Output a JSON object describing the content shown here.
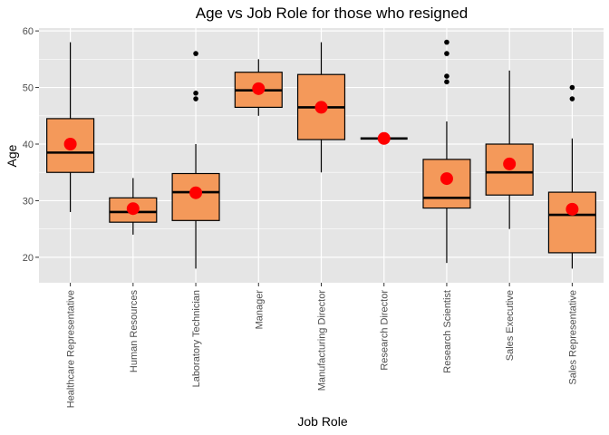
{
  "chart_data": {
    "type": "boxplot",
    "title": "Age vs Job Role for those who resigned",
    "xlabel": "Job Role",
    "ylabel": "Age",
    "ylim": [
      15.5,
      60.5
    ],
    "yticks": [
      20,
      30,
      40,
      50,
      60
    ],
    "grid": true,
    "colors": {
      "panel": "#e5e5e5",
      "grid": "#ffffff",
      "box_fill": "#f4995a",
      "box_stroke": "#000000",
      "mean": "#ff0000",
      "outlier": "#000000"
    },
    "categories": [
      "Healthcare Representative",
      "Human Resources",
      "Laboratory Technician",
      "Manager",
      "Manufacturing Director",
      "Research Director",
      "Research Scientist",
      "Sales Executive",
      "Sales Representative"
    ],
    "boxes": [
      {
        "min": 28,
        "q1": 35,
        "median": 38.5,
        "q3": 44.5,
        "max": 58,
        "mean": 40,
        "outliers": []
      },
      {
        "min": 24,
        "q1": 26.2,
        "median": 28,
        "q3": 30.5,
        "max": 34,
        "mean": 28.6,
        "outliers": []
      },
      {
        "min": 18,
        "q1": 26.5,
        "median": 31.5,
        "q3": 34.8,
        "max": 40,
        "mean": 31.4,
        "outliers": [
          48,
          49,
          56
        ]
      },
      {
        "min": 45,
        "q1": 46.5,
        "median": 49.5,
        "q3": 52.7,
        "max": 55,
        "mean": 49.8,
        "outliers": []
      },
      {
        "min": 35,
        "q1": 40.8,
        "median": 46.5,
        "q3": 52.3,
        "max": 58,
        "mean": 46.5,
        "outliers": []
      },
      {
        "min": 41,
        "q1": 41,
        "median": 41,
        "q3": 41,
        "max": 41,
        "mean": 41,
        "outliers": []
      },
      {
        "min": 19,
        "q1": 28.7,
        "median": 30.5,
        "q3": 37.3,
        "max": 44,
        "mean": 33.9,
        "outliers": [
          51,
          52,
          56,
          58
        ]
      },
      {
        "min": 25,
        "q1": 31,
        "median": 35,
        "q3": 40,
        "max": 53,
        "mean": 36.5,
        "outliers": []
      },
      {
        "min": 18,
        "q1": 20.8,
        "median": 27.5,
        "q3": 31.5,
        "max": 41,
        "mean": 28.5,
        "outliers": [
          48,
          50
        ]
      }
    ]
  }
}
